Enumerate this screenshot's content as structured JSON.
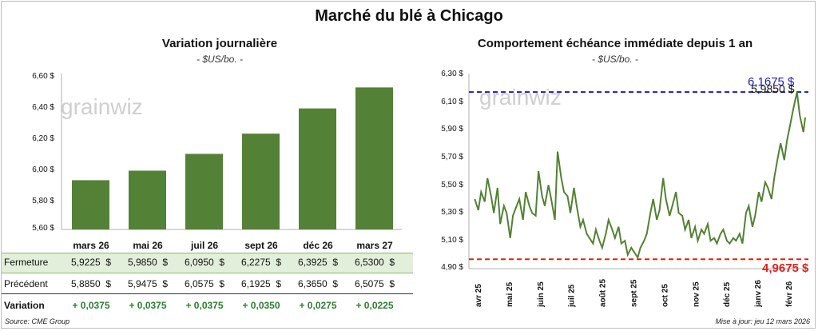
{
  "title": "Marché du blé à Chicago",
  "left": {
    "title": "Variation journalière",
    "unit": "- $US/bo. -",
    "watermark": "grainwiz",
    "y_ticks": [
      "6,60 $",
      "6,40 $",
      "6,20 $",
      "6,00 $",
      "5,80 $",
      "5,60 $"
    ],
    "table": {
      "fermeture_label": "Fermeture",
      "precedent_label": "Précédent",
      "variation_label": "Variation",
      "fermeture": [
        "5,9225  $",
        "5,9850  $",
        "6,0950  $",
        "6,2275  $",
        "6,3925  $",
        "6,5300  $"
      ],
      "precedent": [
        "5,8850  $",
        "5,9475  $",
        "6,0575  $",
        "6,1925  $",
        "6,3650  $",
        "6,5075  $"
      ],
      "variation": [
        "+ 0,0375",
        "+ 0,0375",
        "+ 0,0375",
        "+ 0,0350",
        "+ 0,0275",
        "+ 0,0225"
      ]
    }
  },
  "right": {
    "title": "Comportement  échéance immédiate depuis 1 an",
    "unit": "- $US/bo. -",
    "watermark": "grainwiz",
    "y_ticks": [
      "6,30 $",
      "6,10 $",
      "5,90 $",
      "5,70 $",
      "5,50 $",
      "5,30 $",
      "5,10 $",
      "4,90 $"
    ],
    "x_ticks": [
      "avr 25",
      "mai 25",
      "juin 25",
      "juil 25",
      "août 25",
      "sept 25",
      "oct 25",
      "nov 25",
      "déc 25",
      "janv 26",
      "févr 26"
    ],
    "high_label": "6,1675 $",
    "low_label": "4,9675 $",
    "last_label": "5,9850 $"
  },
  "footer": {
    "source": "Source: CME Group",
    "updated": "Mise à jour: jeu 12 mars 2026"
  },
  "colors": {
    "bar": "#538135",
    "line": "#538135",
    "high": "#1f1fb4",
    "low": "#e02020",
    "table_highlight": "#e2efda",
    "green_text": "#2e7d32"
  },
  "chart_data": [
    {
      "type": "bar",
      "title": "Variation journalière",
      "ylabel": "$US/bo.",
      "categories": [
        "mars 26",
        "mai 26",
        "juil 26",
        "sept 26",
        "déc 26",
        "mars 27"
      ],
      "values": [
        5.9225,
        5.985,
        6.095,
        6.2275,
        6.3925,
        6.53
      ],
      "ylim": [
        5.6,
        6.6
      ],
      "grid": false
    },
    {
      "type": "line",
      "title": "Comportement  échéance immédiate depuis 1 an",
      "ylabel": "$US/bo.",
      "ylim": [
        4.9,
        6.3
      ],
      "x_range": [
        "2025-03-12",
        "2026-03-12"
      ],
      "reference_lines": [
        {
          "label": "6,1675 $",
          "value": 6.1675
        },
        {
          "label": "4,9675 $",
          "value": 4.9675
        }
      ],
      "series": [
        {
          "x": [
            "2025-03-14",
            "2025-03-18",
            "2025-03-21",
            "2025-03-25",
            "2025-03-28",
            "2025-04-01",
            "2025-04-04",
            "2025-04-08",
            "2025-04-11",
            "2025-04-15",
            "2025-04-18",
            "2025-04-22",
            "2025-04-25",
            "2025-04-29",
            "2025-05-02",
            "2025-05-06",
            "2025-05-09",
            "2025-05-13",
            "2025-05-16",
            "2025-05-20",
            "2025-05-23",
            "2025-05-27",
            "2025-05-30",
            "2025-06-03",
            "2025-06-06",
            "2025-06-10",
            "2025-06-13",
            "2025-06-17",
            "2025-06-20",
            "2025-06-24",
            "2025-06-27",
            "2025-07-01",
            "2025-07-04",
            "2025-07-08",
            "2025-07-11",
            "2025-07-15",
            "2025-07-18",
            "2025-07-22",
            "2025-07-25",
            "2025-07-29",
            "2025-08-01",
            "2025-08-05",
            "2025-08-08",
            "2025-08-12",
            "2025-08-15",
            "2025-08-19",
            "2025-08-22",
            "2025-08-26",
            "2025-08-29",
            "2025-09-02",
            "2025-09-05",
            "2025-09-09",
            "2025-09-12",
            "2025-09-16",
            "2025-09-19",
            "2025-09-23",
            "2025-09-26",
            "2025-09-30",
            "2025-10-03",
            "2025-10-07",
            "2025-10-10",
            "2025-10-14",
            "2025-10-17",
            "2025-10-21",
            "2025-10-24",
            "2025-10-28",
            "2025-10-31",
            "2025-11-04",
            "2025-11-07",
            "2025-11-11",
            "2025-11-14",
            "2025-11-18",
            "2025-11-21",
            "2025-11-25",
            "2025-11-28",
            "2025-12-02",
            "2025-12-05",
            "2025-12-09",
            "2025-12-12",
            "2025-12-16",
            "2025-12-19",
            "2025-12-23",
            "2025-12-26",
            "2025-12-30",
            "2026-01-02",
            "2026-01-06",
            "2026-01-09",
            "2026-01-13",
            "2026-01-16",
            "2026-01-20",
            "2026-01-23",
            "2026-01-27",
            "2026-01-30",
            "2026-02-03",
            "2026-02-06",
            "2026-02-10",
            "2026-02-13",
            "2026-02-17",
            "2026-02-20",
            "2026-02-24",
            "2026-02-27",
            "2026-03-03",
            "2026-03-06",
            "2026-03-10",
            "2026-03-12"
          ],
          "y": [
            5.4,
            5.32,
            5.45,
            5.38,
            5.55,
            5.42,
            5.3,
            5.48,
            5.22,
            5.35,
            5.3,
            5.12,
            5.28,
            5.35,
            5.4,
            5.25,
            5.45,
            5.35,
            5.3,
            5.28,
            5.6,
            5.42,
            5.35,
            5.5,
            5.4,
            5.25,
            5.74,
            5.55,
            5.45,
            5.42,
            5.3,
            5.48,
            5.35,
            5.2,
            5.25,
            5.15,
            5.12,
            5.08,
            5.18,
            5.1,
            5.05,
            5.15,
            5.25,
            5.18,
            5.12,
            5.2,
            5.08,
            5.1,
            5.0,
            5.05,
            5.02,
            4.98,
            5.05,
            5.1,
            5.15,
            5.3,
            5.4,
            5.25,
            5.32,
            5.55,
            5.4,
            5.28,
            5.35,
            5.45,
            5.3,
            5.28,
            5.18,
            5.25,
            5.12,
            5.2,
            5.1,
            5.18,
            5.15,
            5.22,
            5.1,
            5.12,
            5.08,
            5.15,
            5.18,
            5.1,
            5.08,
            5.12,
            5.1,
            5.15,
            5.08,
            5.3,
            5.35,
            5.2,
            5.28,
            5.45,
            5.38,
            5.52,
            5.48,
            5.4,
            5.55,
            5.7,
            5.8,
            5.68,
            5.82,
            5.95,
            6.05,
            6.1675,
            6.0,
            5.88,
            5.985
          ]
        }
      ]
    }
  ]
}
